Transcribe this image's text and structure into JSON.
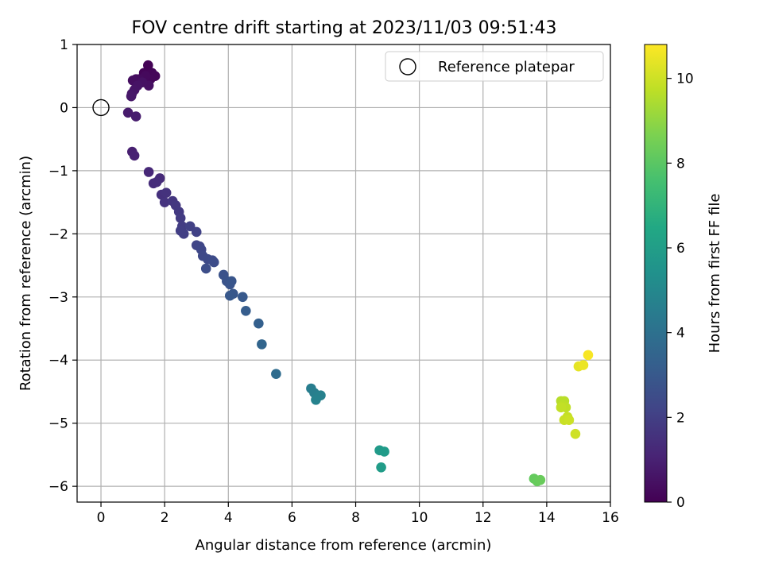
{
  "chart_data": {
    "type": "scatter",
    "title": "FOV centre drift starting at 2023/11/03 09:51:43",
    "xlabel": "Angular distance from reference (arcmin)",
    "ylabel": "Rotation from reference (arcmin)",
    "xlim": [
      -0.75,
      16.0
    ],
    "ylim": [
      -6.25,
      1.0
    ],
    "xticks": [
      0,
      2,
      4,
      6,
      8,
      10,
      12,
      14,
      16
    ],
    "yticks": [
      -6,
      -5,
      -4,
      -3,
      -2,
      -1,
      0,
      1
    ],
    "grid": true,
    "legend": {
      "placement": "upper-right",
      "entries": [
        "Reference platepar"
      ]
    },
    "reference_point": {
      "x": 0,
      "y": 0
    },
    "colorbar": {
      "label": "Hours from first FF file",
      "range": [
        0,
        10.8
      ],
      "ticks": [
        0,
        2,
        4,
        6,
        8,
        10
      ],
      "colormap": "viridis"
    },
    "points": [
      {
        "x": 1.48,
        "y": 0.67,
        "t": 0.05
      },
      {
        "x": 1.35,
        "y": 0.55,
        "t": 0.1
      },
      {
        "x": 1.6,
        "y": 0.55,
        "t": 0.12
      },
      {
        "x": 1.7,
        "y": 0.5,
        "t": 0.15
      },
      {
        "x": 1.55,
        "y": 0.45,
        "t": 0.2
      },
      {
        "x": 1.4,
        "y": 0.5,
        "t": 0.25
      },
      {
        "x": 1.2,
        "y": 0.45,
        "t": 0.3
      },
      {
        "x": 1.1,
        "y": 0.45,
        "t": 0.35
      },
      {
        "x": 1.0,
        "y": 0.43,
        "t": 0.4
      },
      {
        "x": 1.5,
        "y": 0.35,
        "t": 0.45
      },
      {
        "x": 1.3,
        "y": 0.4,
        "t": 0.5
      },
      {
        "x": 1.15,
        "y": 0.35,
        "t": 0.55
      },
      {
        "x": 1.05,
        "y": 0.28,
        "t": 0.6
      },
      {
        "x": 0.97,
        "y": 0.22,
        "t": 0.65
      },
      {
        "x": 0.95,
        "y": 0.18,
        "t": 0.7
      },
      {
        "x": 0.85,
        "y": -0.08,
        "t": 0.8
      },
      {
        "x": 1.1,
        "y": -0.14,
        "t": 0.85
      },
      {
        "x": 0.98,
        "y": -0.7,
        "t": 0.95
      },
      {
        "x": 1.05,
        "y": -0.76,
        "t": 1.0
      },
      {
        "x": 1.5,
        "y": -1.02,
        "t": 1.2
      },
      {
        "x": 1.85,
        "y": -1.12,
        "t": 1.3
      },
      {
        "x": 1.65,
        "y": -1.2,
        "t": 1.35
      },
      {
        "x": 1.75,
        "y": -1.18,
        "t": 1.4
      },
      {
        "x": 1.9,
        "y": -1.38,
        "t": 1.5
      },
      {
        "x": 2.05,
        "y": -1.35,
        "t": 1.55
      },
      {
        "x": 2.0,
        "y": -1.5,
        "t": 1.6
      },
      {
        "x": 2.25,
        "y": -1.48,
        "t": 1.7
      },
      {
        "x": 2.35,
        "y": -1.55,
        "t": 1.75
      },
      {
        "x": 2.45,
        "y": -1.65,
        "t": 1.8
      },
      {
        "x": 2.5,
        "y": -1.75,
        "t": 1.85
      },
      {
        "x": 2.55,
        "y": -1.88,
        "t": 1.9
      },
      {
        "x": 2.5,
        "y": -1.95,
        "t": 1.95
      },
      {
        "x": 2.6,
        "y": -2.0,
        "t": 2.0
      },
      {
        "x": 2.8,
        "y": -1.88,
        "t": 2.05
      },
      {
        "x": 3.0,
        "y": -1.97,
        "t": 2.1
      },
      {
        "x": 3.0,
        "y": -2.18,
        "t": 2.2
      },
      {
        "x": 3.1,
        "y": -2.2,
        "t": 2.25
      },
      {
        "x": 3.15,
        "y": -2.25,
        "t": 2.3
      },
      {
        "x": 3.2,
        "y": -2.35,
        "t": 2.35
      },
      {
        "x": 3.35,
        "y": -2.4,
        "t": 2.4
      },
      {
        "x": 3.5,
        "y": -2.42,
        "t": 2.45
      },
      {
        "x": 3.55,
        "y": -2.45,
        "t": 2.5
      },
      {
        "x": 3.3,
        "y": -2.55,
        "t": 2.55
      },
      {
        "x": 3.85,
        "y": -2.65,
        "t": 2.7
      },
      {
        "x": 3.95,
        "y": -2.75,
        "t": 2.75
      },
      {
        "x": 4.05,
        "y": -2.8,
        "t": 2.8
      },
      {
        "x": 4.1,
        "y": -2.75,
        "t": 2.85
      },
      {
        "x": 4.15,
        "y": -2.95,
        "t": 2.9
      },
      {
        "x": 4.05,
        "y": -2.98,
        "t": 2.95
      },
      {
        "x": 4.45,
        "y": -3.0,
        "t": 3.0
      },
      {
        "x": 4.55,
        "y": -3.22,
        "t": 3.15
      },
      {
        "x": 4.95,
        "y": -3.42,
        "t": 3.3
      },
      {
        "x": 5.05,
        "y": -3.75,
        "t": 3.5
      },
      {
        "x": 5.5,
        "y": -4.22,
        "t": 3.8
      },
      {
        "x": 6.6,
        "y": -4.45,
        "t": 4.55
      },
      {
        "x": 6.7,
        "y": -4.52,
        "t": 4.6
      },
      {
        "x": 6.8,
        "y": -4.58,
        "t": 4.65
      },
      {
        "x": 6.9,
        "y": -4.56,
        "t": 4.7
      },
      {
        "x": 6.75,
        "y": -4.63,
        "t": 4.75
      },
      {
        "x": 8.75,
        "y": -5.43,
        "t": 5.8
      },
      {
        "x": 8.9,
        "y": -5.45,
        "t": 5.85
      },
      {
        "x": 8.8,
        "y": -5.7,
        "t": 5.9
      },
      {
        "x": 13.6,
        "y": -5.88,
        "t": 8.2
      },
      {
        "x": 13.7,
        "y": -5.92,
        "t": 8.25
      },
      {
        "x": 13.8,
        "y": -5.9,
        "t": 8.3
      },
      {
        "x": 14.45,
        "y": -4.65,
        "t": 9.6
      },
      {
        "x": 14.55,
        "y": -4.65,
        "t": 9.65
      },
      {
        "x": 14.5,
        "y": -4.72,
        "t": 9.7
      },
      {
        "x": 14.6,
        "y": -4.75,
        "t": 9.75
      },
      {
        "x": 14.45,
        "y": -4.75,
        "t": 9.8
      },
      {
        "x": 14.65,
        "y": -4.9,
        "t": 9.85
      },
      {
        "x": 14.55,
        "y": -4.95,
        "t": 9.9
      },
      {
        "x": 14.7,
        "y": -4.95,
        "t": 9.95
      },
      {
        "x": 14.9,
        "y": -5.17,
        "t": 10.0
      },
      {
        "x": 15.0,
        "y": -4.1,
        "t": 10.4
      },
      {
        "x": 15.15,
        "y": -4.08,
        "t": 10.5
      },
      {
        "x": 15.3,
        "y": -3.92,
        "t": 10.7
      }
    ]
  }
}
